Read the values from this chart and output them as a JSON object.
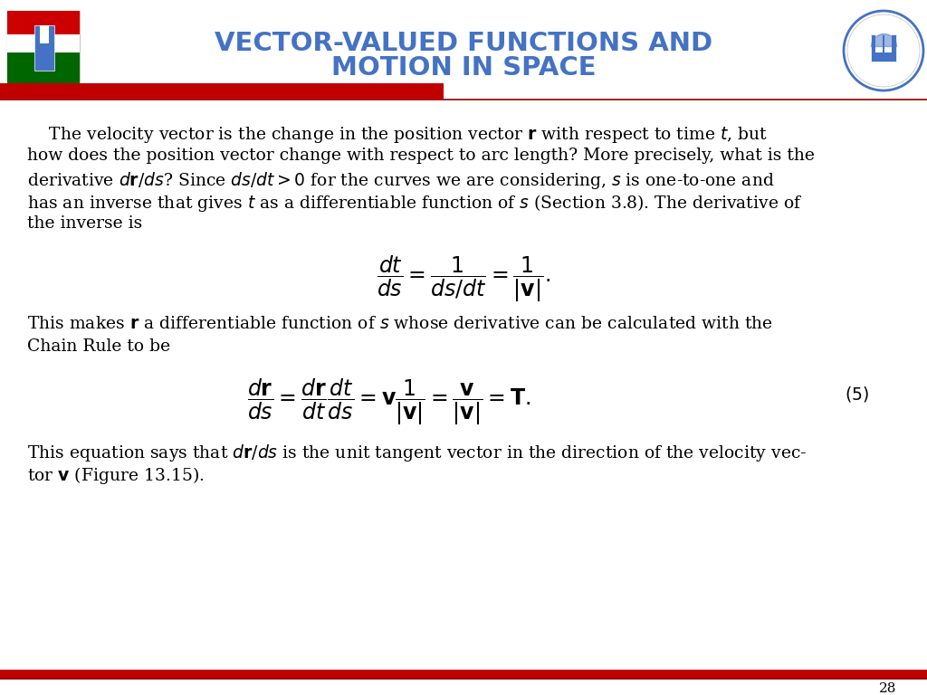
{
  "title_line1": "VECTOR-VALUED FUNCTIONS AND",
  "title_line2": "MOTION IN SPACE",
  "title_color": "#4472C4",
  "bg_color": "#ffffff",
  "red_bar_color": "#C00000",
  "dark_red_line_color": "#8B0000",
  "page_number": "28",
  "body_font": "DejaVu Serif",
  "title_fontsize": 21,
  "body_fontsize": 13.5,
  "eq_fontsize": 16
}
